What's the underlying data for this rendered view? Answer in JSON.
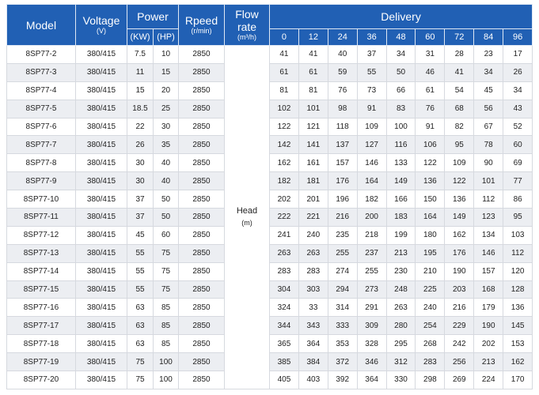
{
  "table": {
    "header": {
      "model": "Model",
      "voltage": "Voltage",
      "voltage_unit": "(V)",
      "power": "Power",
      "power_kw": "(KW)",
      "power_hp": "(HP)",
      "speed": "Rpeed",
      "speed_unit": "(r/min)",
      "flow": "Flow rate",
      "flow_unit": "(m³/h)",
      "delivery": "Delivery",
      "flows": [
        "0",
        "12",
        "24",
        "36",
        "48",
        "60",
        "72",
        "84",
        "96"
      ]
    },
    "head_label": "Head",
    "head_unit": "(m)",
    "rows": [
      [
        "8SP77-2",
        "380/415",
        "7.5",
        "10",
        "2850",
        [
          "41",
          "41",
          "40",
          "37",
          "34",
          "31",
          "28",
          "23",
          "17"
        ]
      ],
      [
        "8SP77-3",
        "380/415",
        "11",
        "15",
        "2850",
        [
          "61",
          "61",
          "59",
          "55",
          "50",
          "46",
          "41",
          "34",
          "26"
        ]
      ],
      [
        "8SP77-4",
        "380/415",
        "15",
        "20",
        "2850",
        [
          "81",
          "81",
          "76",
          "73",
          "66",
          "61",
          "54",
          "45",
          "34"
        ]
      ],
      [
        "8SP77-5",
        "380/415",
        "18.5",
        "25",
        "2850",
        [
          "102",
          "101",
          "98",
          "91",
          "83",
          "76",
          "68",
          "56",
          "43"
        ]
      ],
      [
        "8SP77-6",
        "380/415",
        "22",
        "30",
        "2850",
        [
          "122",
          "121",
          "118",
          "109",
          "100",
          "91",
          "82",
          "67",
          "52"
        ]
      ],
      [
        "8SP77-7",
        "380/415",
        "26",
        "35",
        "2850",
        [
          "142",
          "141",
          "137",
          "127",
          "116",
          "106",
          "95",
          "78",
          "60"
        ]
      ],
      [
        "8SP77-8",
        "380/415",
        "30",
        "40",
        "2850",
        [
          "162",
          "161",
          "157",
          "146",
          "133",
          "122",
          "109",
          "90",
          "69"
        ]
      ],
      [
        "8SP77-9",
        "380/415",
        "30",
        "40",
        "2850",
        [
          "182",
          "181",
          "176",
          "164",
          "149",
          "136",
          "122",
          "101",
          "77"
        ]
      ],
      [
        "8SP77-10",
        "380/415",
        "37",
        "50",
        "2850",
        [
          "202",
          "201",
          "196",
          "182",
          "166",
          "150",
          "136",
          "112",
          "86"
        ]
      ],
      [
        "8SP77-11",
        "380/415",
        "37",
        "50",
        "2850",
        [
          "222",
          "221",
          "216",
          "200",
          "183",
          "164",
          "149",
          "123",
          "95"
        ]
      ],
      [
        "8SP77-12",
        "380/415",
        "45",
        "60",
        "2850",
        [
          "241",
          "240",
          "235",
          "218",
          "199",
          "180",
          "162",
          "134",
          "103"
        ]
      ],
      [
        "8SP77-13",
        "380/415",
        "55",
        "75",
        "2850",
        [
          "263",
          "263",
          "255",
          "237",
          "213",
          "195",
          "176",
          "146",
          "112"
        ]
      ],
      [
        "8SP77-14",
        "380/415",
        "55",
        "75",
        "2850",
        [
          "283",
          "283",
          "274",
          "255",
          "230",
          "210",
          "190",
          "157",
          "120"
        ]
      ],
      [
        "8SP77-15",
        "380/415",
        "55",
        "75",
        "2850",
        [
          "304",
          "303",
          "294",
          "273",
          "248",
          "225",
          "203",
          "168",
          "128"
        ]
      ],
      [
        "8SP77-16",
        "380/415",
        "63",
        "85",
        "2850",
        [
          "324",
          "33",
          "314",
          "291",
          "263",
          "240",
          "216",
          "179",
          "136"
        ]
      ],
      [
        "8SP77-17",
        "380/415",
        "63",
        "85",
        "2850",
        [
          "344",
          "343",
          "333",
          "309",
          "280",
          "254",
          "229",
          "190",
          "145"
        ]
      ],
      [
        "8SP77-18",
        "380/415",
        "63",
        "85",
        "2850",
        [
          "365",
          "364",
          "353",
          "328",
          "295",
          "268",
          "242",
          "202",
          "153"
        ]
      ],
      [
        "8SP77-19",
        "380/415",
        "75",
        "100",
        "2850",
        [
          "385",
          "384",
          "372",
          "346",
          "312",
          "283",
          "256",
          "213",
          "162"
        ]
      ],
      [
        "8SP77-20",
        "380/415",
        "75",
        "100",
        "2850",
        [
          "405",
          "403",
          "392",
          "364",
          "330",
          "298",
          "269",
          "224",
          "170"
        ]
      ]
    ]
  }
}
